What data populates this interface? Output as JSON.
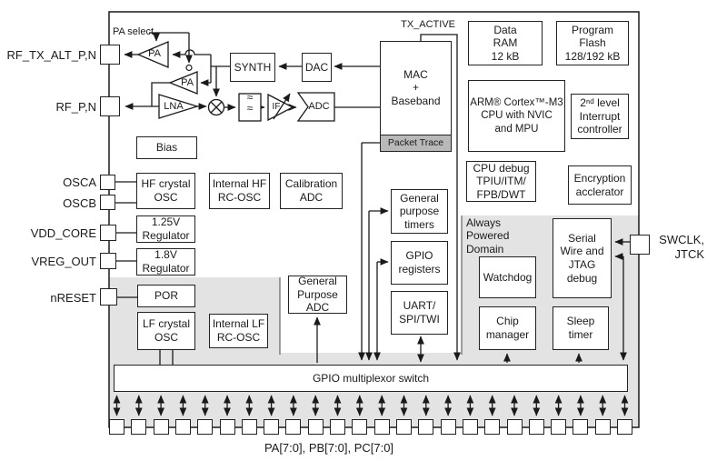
{
  "annotations": {
    "pa_select": "PA select",
    "tx_active": "TX_ACTIVE",
    "packet_trace": "Packet Trace",
    "always_powered_domain": "Always\nPowered\nDomain"
  },
  "blocks": {
    "synth": "SYNTH",
    "dac": "DAC",
    "mac": "MAC\n+\nBaseband",
    "data_ram": "Data\nRAM\n12 kB",
    "program_flash": "Program\nFlash\n128/192 kB",
    "arm_cpu": "ARM® Cortex™-M3\nCPU with NVIC\nand MPU",
    "interrupt_controller": "2ⁿᵈ level\nInterrupt\ncontroller",
    "cpu_debug": "CPU debug\nTPIU/ITM/\nFPB/DWT",
    "encryption": "Encryption\nacclerator",
    "bias": "Bias",
    "hf_crystal_osc": "HF crystal\nOSC",
    "internal_hf_rc_osc": "Internal HF\nRC-OSC",
    "calibration_adc": "Calibration\nADC",
    "reg_1v25": "1.25V\nRegulator",
    "reg_1v8": "1.8V\nRegulator",
    "por": "POR",
    "lf_crystal_osc": "LF crystal\nOSC",
    "internal_lf_rc_osc": "Internal LF\nRC-OSC",
    "general_purpose_adc": "General\nPurpose\nADC",
    "general_purpose_timers": "General\npurpose\ntimers",
    "gpio_registers": "GPIO\nregisters",
    "uart_spi_twi": "UART/\nSPI/TWI",
    "watchdog": "Watchdog",
    "serial_wire_jtag": "Serial\nWire and\nJTAG\ndebug",
    "chip_manager": "Chip\nmanager",
    "sleep_timer": "Sleep\ntimer",
    "gpio_mux": "GPIO multiplexor switch"
  },
  "rf_chain": {
    "pa_top": "PA",
    "pa_bottom": "PA",
    "lna": "LNA",
    "if_amp": "IF",
    "adc": "ADC",
    "filter_glyph": "≈\n≈"
  },
  "pins": {
    "left": [
      "RF_TX_ALT_P,N",
      "RF_P,N",
      "OSCA",
      "OSCB",
      "VDD_CORE",
      "VREG_OUT",
      "nRESET"
    ],
    "right": [
      "SWCLK,\nJTCK"
    ],
    "bottom_label": "PA[7:0], PB[7:0], PC[7:0]",
    "bottom_count": 24
  },
  "colors": {
    "line": "#1a1a1a",
    "block_fill": "#ffffff",
    "domain_fill": "#e3e3e3",
    "packet_trace_fill": "#b9b9b9",
    "background": "#ffffff"
  }
}
